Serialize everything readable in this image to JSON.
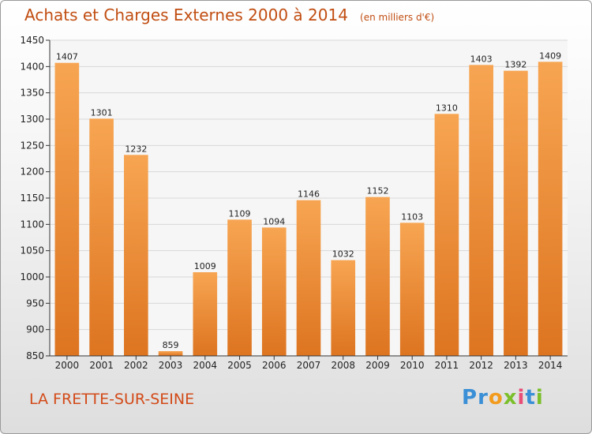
{
  "header": {
    "title": "Achats et Charges Externes 2000 à 2014",
    "unit": "(en milliers d'€)"
  },
  "footer": {
    "city": "LA FRETTE-SUR-SEINE",
    "logo_text": "Proxiti",
    "logo_colors": [
      "#3a8fd6",
      "#3a8fd6",
      "#f29b1d",
      "#7bbf2a",
      "#e94e77",
      "#3a8fd6",
      "#7bbf2a"
    ]
  },
  "colors": {
    "bar_light": "#f7a552",
    "bar_dark": "#dd7420",
    "grid": "#d8d8d8",
    "axis": "#333333"
  },
  "chart_data": {
    "type": "bar",
    "title": "Achats et Charges Externes 2000 à 2014",
    "categories": [
      "2000",
      "2001",
      "2002",
      "2003",
      "2004",
      "2005",
      "2006",
      "2007",
      "2008",
      "2009",
      "2010",
      "2011",
      "2012",
      "2013",
      "2014"
    ],
    "values": [
      1407,
      1301,
      1232,
      859,
      1009,
      1109,
      1094,
      1146,
      1032,
      1152,
      1103,
      1310,
      1403,
      1392,
      1409
    ],
    "ylim": [
      850,
      1450
    ],
    "yticks": [
      850,
      900,
      950,
      1000,
      1050,
      1100,
      1150,
      1200,
      1250,
      1300,
      1350,
      1400,
      1450
    ],
    "grid": true,
    "xlabel": "",
    "ylabel": ""
  }
}
